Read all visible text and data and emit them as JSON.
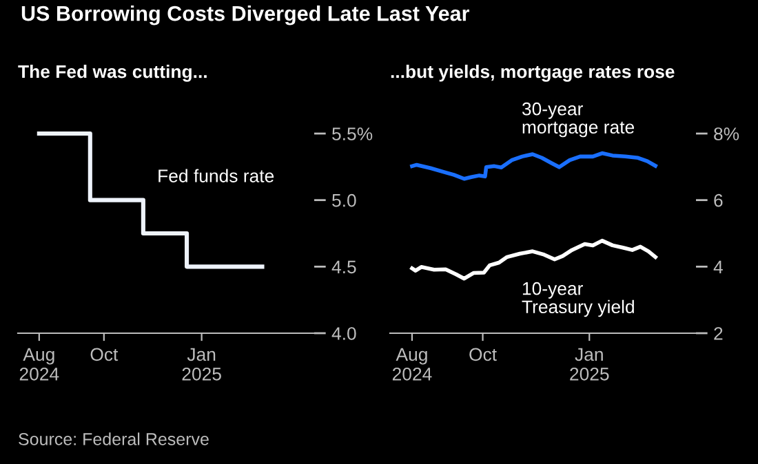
{
  "chart_data": [
    {
      "type": "step",
      "title": "US Borrowing Costs Diverged Late Last Year",
      "subtitle": "The Fed was cutting...",
      "x": [
        "2024-08-01",
        "2024-09-18",
        "2024-11-07",
        "2024-12-18",
        "2025-02-27"
      ],
      "series": [
        {
          "name": "Fed funds rate",
          "color": "#eef3fb",
          "values": [
            5.5,
            5.0,
            4.75,
            4.5,
            4.5
          ]
        }
      ],
      "xlim": [
        "2024-07-12",
        "2025-04-17"
      ],
      "ylim": [
        4.0,
        5.5
      ],
      "xticks": [
        {
          "value": "2024-08-01",
          "label": "Aug\n2024"
        },
        {
          "value": "2024-10-01",
          "label": "Oct"
        },
        {
          "value": "2025-01-01",
          "label": "Jan\n2025"
        }
      ],
      "yticks": [
        {
          "value": 4.0,
          "label": "4.0"
        },
        {
          "value": 4.5,
          "label": "4.5"
        },
        {
          "value": 5.0,
          "label": "5.0"
        },
        {
          "value": 5.5,
          "label": "5.5%"
        }
      ],
      "annotations": [
        "Source: Federal Reserve"
      ]
    },
    {
      "type": "line",
      "subtitle": "...but yields, mortgage rates rose",
      "series": [
        {
          "name": "30-year\nmortgage rate",
          "color": "#1a6fff",
          "x": [
            "2024-08-01",
            "2024-08-05",
            "2024-08-17",
            "2024-08-28",
            "2024-09-06",
            "2024-09-15",
            "2024-09-21",
            "2024-09-28",
            "2024-10-03",
            "2024-10-04",
            "2024-10-11",
            "2024-10-17",
            "2024-10-26",
            "2024-11-04",
            "2024-11-13",
            "2024-11-21",
            "2024-11-30",
            "2024-12-06",
            "2024-12-15",
            "2024-12-24",
            "2025-01-04",
            "2025-01-12",
            "2025-01-21",
            "2025-02-01",
            "2025-02-12",
            "2025-02-20",
            "2025-02-27"
          ],
          "values": [
            7.02,
            7.06,
            6.96,
            6.85,
            6.76,
            6.64,
            6.69,
            6.74,
            6.71,
            6.99,
            7.02,
            6.98,
            7.2,
            7.31,
            7.38,
            7.27,
            7.1,
            6.99,
            7.2,
            7.31,
            7.31,
            7.41,
            7.34,
            7.31,
            7.27,
            7.17,
            7.03
          ]
        },
        {
          "name": "10-year\nTreasury yield",
          "color": "#ffffff",
          "x": [
            "2024-08-01",
            "2024-08-04",
            "2024-08-09",
            "2024-08-20",
            "2024-08-30",
            "2024-09-08",
            "2024-09-15",
            "2024-09-23",
            "2024-10-02",
            "2024-10-07",
            "2024-10-15",
            "2024-10-22",
            "2024-11-02",
            "2024-11-13",
            "2024-11-23",
            "2024-12-02",
            "2024-12-09",
            "2024-12-17",
            "2024-12-28",
            "2025-01-04",
            "2025-01-12",
            "2025-01-21",
            "2025-01-30",
            "2025-02-07",
            "2025-02-14",
            "2025-02-21",
            "2025-02-27"
          ],
          "values": [
            3.95,
            3.88,
            3.99,
            3.91,
            3.92,
            3.77,
            3.64,
            3.81,
            3.82,
            4.04,
            4.12,
            4.29,
            4.39,
            4.46,
            4.36,
            4.22,
            4.32,
            4.5,
            4.68,
            4.64,
            4.78,
            4.64,
            4.57,
            4.5,
            4.6,
            4.46,
            4.29
          ]
        }
      ],
      "xlim": [
        "2024-07-13",
        "2025-04-03"
      ],
      "ylim": [
        2,
        8
      ],
      "xticks": [
        {
          "value": "2024-08-01",
          "label": "Aug\n2024"
        },
        {
          "value": "2024-10-01",
          "label": "Oct"
        },
        {
          "value": "2025-01-01",
          "label": "Jan\n2025"
        }
      ],
      "yticks": [
        {
          "value": 2,
          "label": "2"
        },
        {
          "value": 4,
          "label": "4"
        },
        {
          "value": 6,
          "label": "6"
        },
        {
          "value": 8,
          "label": "8%"
        }
      ]
    }
  ]
}
